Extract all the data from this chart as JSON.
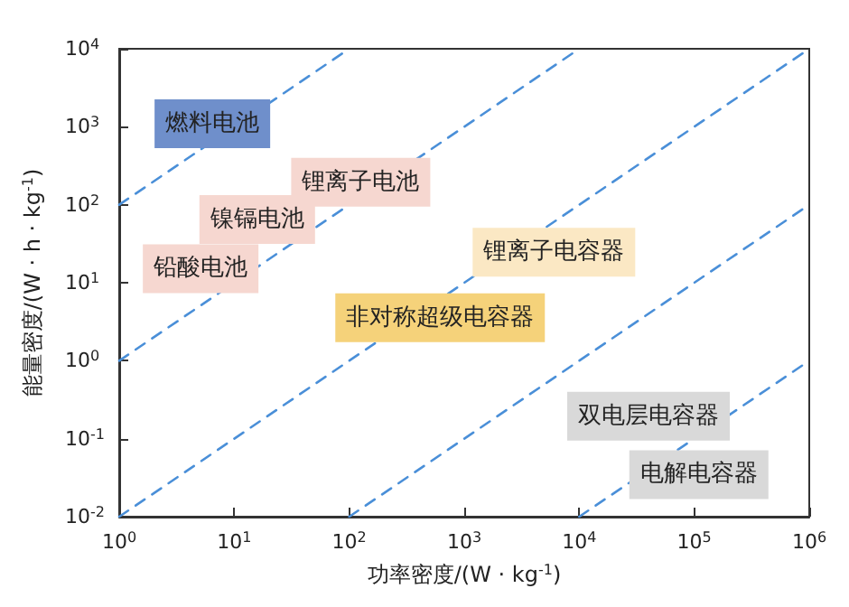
{
  "chart_data": {
    "type": "line",
    "xlabel": "功率密度/(W · kg$^{-1}$)",
    "ylabel": "能量密度/(W · h · kg$^{-1}$)",
    "log": "xy",
    "grid": false,
    "marker": "none",
    "line_style": "dashed",
    "xlim": [
      1,
      1000000
    ],
    "ylim": [
      0.01,
      10000
    ],
    "xticks": [
      {
        "value": 1,
        "label": "10$^{0}$"
      },
      {
        "value": 10,
        "label": "10$^{1}$"
      },
      {
        "value": 100,
        "label": "10$^{2}$"
      },
      {
        "value": 1000,
        "label": "10$^{3}$"
      },
      {
        "value": 10000,
        "label": "10$^{4}$"
      },
      {
        "value": 100000,
        "label": "10$^{5}$"
      },
      {
        "value": 1000000,
        "label": "10$^{6}$"
      }
    ],
    "yticks": [
      {
        "value": 0.01,
        "label": "10$^{-2}$"
      },
      {
        "value": 0.1,
        "label": "10$^{-1}$"
      },
      {
        "value": 1,
        "label": "10$^{0}$"
      },
      {
        "value": 10,
        "label": "10$^{1}$"
      },
      {
        "value": 100,
        "label": "10$^{2}$"
      },
      {
        "value": 1000,
        "label": "10$^{3}$"
      },
      {
        "value": 10000,
        "label": "10$^{4}$"
      }
    ],
    "series": [
      {
        "color": "#4a8fd8",
        "x": [
          1,
          100
        ],
        "values": [
          100,
          10000
        ]
      },
      {
        "color": "#4a8fd8",
        "x": [
          1,
          10000
        ],
        "values": [
          1,
          10000
        ]
      },
      {
        "color": "#4a8fd8",
        "x": [
          1,
          1000000
        ],
        "values": [
          0.01,
          10000
        ]
      },
      {
        "color": "#4a8fd8",
        "x": [
          100,
          1000000
        ],
        "values": [
          0.01,
          100
        ]
      },
      {
        "color": "#4a8fd8",
        "x": [
          10000,
          1000000
        ],
        "values": [
          0.01,
          1
        ]
      }
    ],
    "annotations": [
      "燃料电池",
      "锂离子电池",
      "镍镉电池",
      "铅酸电池",
      "锂离子电容器",
      "非对称超级电容器",
      "双电层电容器",
      "电解电容器"
    ]
  }
}
